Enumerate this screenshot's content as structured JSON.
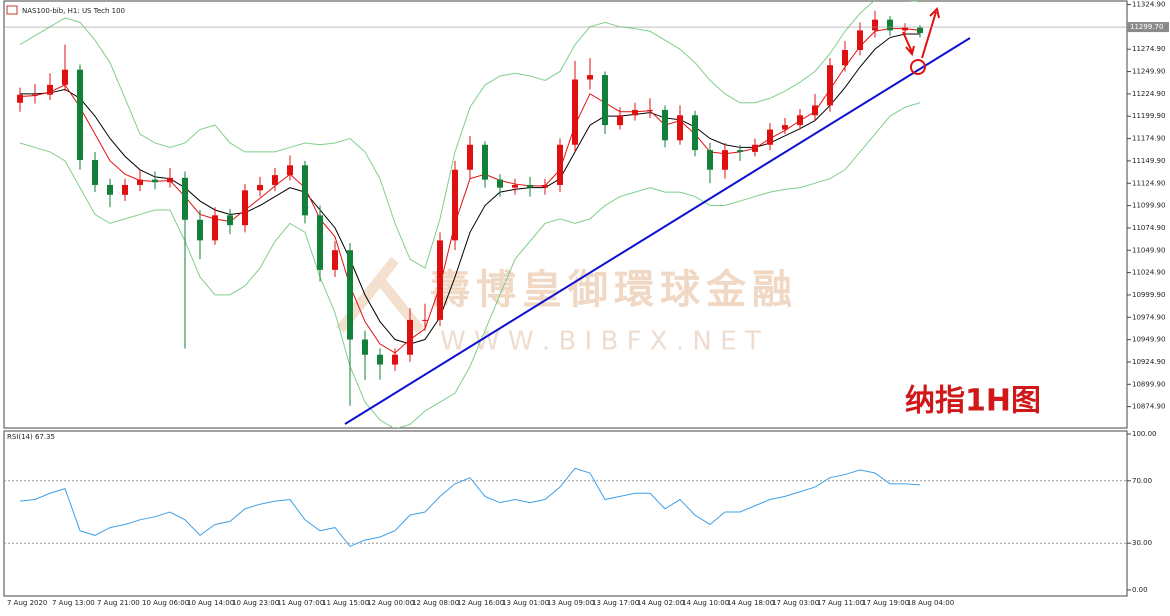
{
  "title": "NAS100-bib, H1: US Tech 100",
  "price_line": {
    "value": 11299.7,
    "label": "11299.70"
  },
  "watermark": "壽博皇御環球金融",
  "watermark_url": "W W W . B I B F X . N E T",
  "annotation": "纳指1H图",
  "chart_data": [
    {
      "type": "candlestick",
      "categories": [
        "7 Aug 2020",
        null,
        null,
        "7 Aug 13:00",
        null,
        null,
        "7 Aug 21:00",
        null,
        null,
        "10 Aug 06:00",
        null,
        null,
        "10 Aug 14:00",
        null,
        null,
        "10 Aug 23:00",
        null,
        null,
        "11 Aug 07:00",
        null,
        null,
        "11 Aug 15:00",
        null,
        null,
        "12 Aug 00:00",
        null,
        null,
        "12 Aug 08:00",
        null,
        null,
        "12 Aug 16:00",
        null,
        null,
        "13 Aug 01:00",
        null,
        null,
        "13 Aug 09:00",
        null,
        null,
        "13 Aug 17:00",
        null,
        null,
        "14 Aug 02:00",
        null,
        null,
        "14 Aug 10:00",
        null,
        null,
        "14 Aug 18:00",
        null,
        null,
        "17 Aug 03:00",
        null,
        null,
        "17 Aug 11:00",
        null,
        null,
        "17 Aug 19:00",
        null,
        null,
        "18 Aug 04:00"
      ],
      "open": [
        11215,
        11224,
        11224,
        11235,
        11252,
        11151,
        11123,
        11112,
        11123,
        11129,
        11126,
        11131,
        11084,
        11061,
        11089,
        11078,
        11117,
        11123,
        11134,
        11145,
        11089,
        11028,
        11050,
        10950,
        10933,
        10922,
        10933,
        10972,
        10972,
        11061,
        11140,
        11168,
        11129,
        11120,
        11123,
        11120,
        11123,
        11168,
        11241,
        11246,
        11190,
        11201,
        11207,
        11207,
        11173,
        11201,
        11162,
        11140,
        11162,
        11160,
        11168,
        11185,
        11190,
        11201,
        11212,
        11257,
        11274,
        11296,
        11308,
        11296,
        11299
      ],
      "high": [
        11232,
        11236,
        11248,
        11280,
        11258,
        11160,
        11130,
        11130,
        11140,
        11138,
        11142,
        11138,
        11095,
        11098,
        11096,
        11124,
        11132,
        11142,
        11156,
        11150,
        11100,
        11060,
        11058,
        10960,
        10940,
        10940,
        10985,
        10990,
        11070,
        11150,
        11178,
        11172,
        11135,
        11130,
        11132,
        11130,
        11175,
        11262,
        11265,
        11250,
        11210,
        11215,
        11220,
        11212,
        11212,
        11206,
        11170,
        11170,
        11168,
        11175,
        11192,
        11198,
        11208,
        11225,
        11265,
        11284,
        11305,
        11318,
        11312,
        11304,
        11302
      ],
      "low": [
        11205,
        11214,
        11218,
        11228,
        11140,
        11115,
        11098,
        11105,
        11116,
        11118,
        11120,
        10940,
        11040,
        11056,
        11068,
        11070,
        11110,
        11116,
        11128,
        11080,
        11015,
        11020,
        10876,
        10905,
        10905,
        10915,
        10925,
        10960,
        10965,
        11050,
        11130,
        11120,
        11110,
        11112,
        11110,
        11112,
        11115,
        11160,
        11230,
        11180,
        11185,
        11195,
        11198,
        11165,
        11168,
        11155,
        11125,
        11130,
        11150,
        11155,
        11162,
        11180,
        11185,
        11195,
        11205,
        11250,
        11268,
        11288,
        11290,
        11290,
        11288
      ],
      "close": [
        11224,
        11224,
        11235,
        11252,
        11151,
        11123,
        11112,
        11123,
        11129,
        11126,
        11131,
        11084,
        11061,
        11089,
        11078,
        11117,
        11123,
        11134,
        11145,
        11089,
        11028,
        11050,
        10950,
        10933,
        10922,
        10933,
        10972,
        10972,
        11061,
        11140,
        11168,
        11129,
        11120,
        11123,
        11120,
        11123,
        11168,
        11241,
        11246,
        11190,
        11201,
        11207,
        11207,
        11173,
        11201,
        11162,
        11140,
        11162,
        11160,
        11168,
        11185,
        11190,
        11201,
        11212,
        11257,
        11274,
        11296,
        11308,
        11296,
        11299,
        11293
      ],
      "up_color": "#e01010",
      "down_color": "#13803a",
      "series": [
        {
          "color": "#7fcf8a",
          "values": [
            11280,
            11290,
            11300,
            11310,
            11305,
            11285,
            11260,
            11220,
            11180,
            11170,
            11165,
            11170,
            11185,
            11190,
            11170,
            11160,
            11160,
            11160,
            11165,
            11170,
            11168,
            11170,
            11175,
            11160,
            11130,
            11080,
            11040,
            11030,
            11085,
            11160,
            11210,
            11235,
            11245,
            11248,
            11245,
            11240,
            11250,
            11280,
            11300,
            11305,
            11300,
            11298,
            11295,
            11285,
            11275,
            11260,
            11240,
            11225,
            11215,
            11215,
            11220,
            11228,
            11238,
            11250,
            11270,
            11295,
            11315,
            11330,
            11335,
            11330,
            11328
          ]
        },
        {
          "color": "#7fcf8a",
          "values": [
            11170,
            11165,
            11160,
            11150,
            11120,
            11090,
            11080,
            11085,
            11090,
            11095,
            11095,
            11060,
            11020,
            11000,
            11000,
            11010,
            11030,
            11060,
            11080,
            11070,
            11020,
            10980,
            10920,
            10880,
            10860,
            10850,
            10855,
            10870,
            10880,
            10890,
            10920,
            10960,
            11000,
            11040,
            11060,
            11080,
            11085,
            11080,
            11085,
            11100,
            11110,
            11115,
            11120,
            11115,
            11115,
            11110,
            11100,
            11100,
            11105,
            11110,
            11115,
            11118,
            11120,
            11125,
            11130,
            11140,
            11160,
            11180,
            11200,
            11210,
            11215
          ]
        },
        {
          "color": "#000000",
          "values": [
            11225,
            11225,
            11226,
            11230,
            11220,
            11200,
            11175,
            11155,
            11140,
            11132,
            11130,
            11120,
            11105,
            11095,
            11090,
            11092,
            11100,
            11110,
            11120,
            11115,
            11095,
            11075,
            11040,
            11000,
            10970,
            10950,
            10945,
            10950,
            10975,
            11020,
            11070,
            11100,
            11115,
            11118,
            11120,
            11120,
            11130,
            11160,
            11190,
            11200,
            11200,
            11202,
            11204,
            11198,
            11196,
            11188,
            11175,
            11168,
            11165,
            11165,
            11170,
            11178,
            11186,
            11195,
            11212,
            11232,
            11255,
            11275,
            11288,
            11292,
            11292
          ]
        },
        {
          "color": "#e01010",
          "values": [
            11222,
            11223,
            11227,
            11235,
            11210,
            11180,
            11150,
            11135,
            11128,
            11127,
            11128,
            11110,
            11090,
            11085,
            11082,
            11095,
            11108,
            11122,
            11135,
            11120,
            11085,
            11065,
            11010,
            10970,
            10945,
            10935,
            10950,
            10962,
            11010,
            11080,
            11130,
            11135,
            11128,
            11124,
            11122,
            11122,
            11140,
            11190,
            11225,
            11215,
            11205,
            11205,
            11206,
            11190,
            11195,
            11180,
            11160,
            11158,
            11160,
            11164,
            11175,
            11184,
            11195,
            11205,
            11230,
            11255,
            11278,
            11295,
            11298,
            11298,
            11296
          ]
        }
      ],
      "ylim": [
        10851,
        11330
      ],
      "yticks": [
        {
          "value": 11324.9,
          "label": "11324.90"
        },
        {
          "value": 11274.9,
          "label": "11274.90"
        },
        {
          "value": 11249.9,
          "label": "11249.90"
        },
        {
          "value": 11224.9,
          "label": "11224.90"
        },
        {
          "value": 11199.9,
          "label": "11199.90"
        },
        {
          "value": 11174.9,
          "label": "11174.90"
        },
        {
          "value": 11149.9,
          "label": "11149.90"
        },
        {
          "value": 11124.9,
          "label": "11124.90"
        },
        {
          "value": 11099.9,
          "label": "11099.90"
        },
        {
          "value": 11074.9,
          "label": "11074.90"
        },
        {
          "value": 11049.9,
          "label": "11049.90"
        },
        {
          "value": 11024.9,
          "label": "11024.90"
        },
        {
          "value": 10999.9,
          "label": "10999.90"
        },
        {
          "value": 10974.9,
          "label": "10974.90"
        },
        {
          "value": 10949.9,
          "label": "10949.90"
        },
        {
          "value": 10924.9,
          "label": "10924.90"
        },
        {
          "value": 10899.9,
          "label": "10899.90"
        },
        {
          "value": 10874.9,
          "label": "10874.90"
        }
      ]
    },
    {
      "type": "line",
      "label": "RSI(14) 67.35",
      "series": [
        {
          "color": "#3fa0e8",
          "values": [
            57,
            58,
            62,
            65,
            38,
            35,
            40,
            42,
            45,
            47,
            50,
            45,
            35,
            42,
            44,
            52,
            55,
            57,
            58,
            45,
            38,
            40,
            28,
            32,
            34,
            38,
            48,
            50,
            60,
            68,
            72,
            60,
            56,
            58,
            56,
            58,
            66,
            78,
            75,
            58,
            60,
            62,
            62,
            52,
            58,
            48,
            42,
            50,
            50,
            54,
            58,
            60,
            63,
            66,
            72,
            74,
            77,
            75,
            68,
            68,
            67.35
          ]
        }
      ],
      "ylim": [
        0,
        100
      ],
      "yticks": [
        {
          "value": 100,
          "label": "100.00"
        },
        {
          "value": 70,
          "label": "70.00"
        },
        {
          "value": 30,
          "label": "30.00"
        },
        {
          "value": 0,
          "label": "0.00"
        }
      ],
      "levels": [
        {
          "value": 70
        },
        {
          "value": 30
        }
      ]
    }
  ]
}
